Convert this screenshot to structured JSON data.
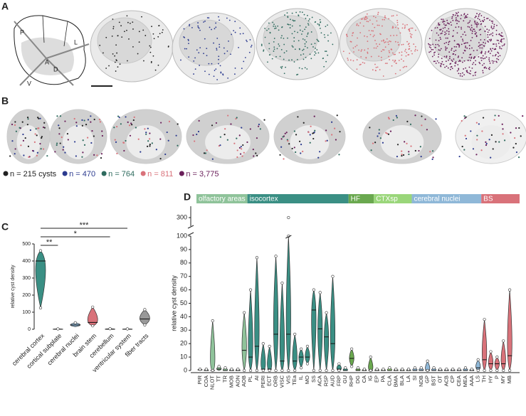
{
  "panel_labels": [
    "A",
    "B",
    "C",
    "D"
  ],
  "panel_a": {
    "axes": [
      "P",
      "L",
      "A",
      "D",
      "V"
    ]
  },
  "panel_b": {
    "legend": [
      {
        "label": "n = 215 cysts",
        "color": "#222222"
      },
      {
        "label": "n = 470",
        "color": "#2b3a8f"
      },
      {
        "label": "n = 764",
        "color": "#2e6b5e"
      },
      {
        "label": "n = 811",
        "color": "#d9727a"
      },
      {
        "label": "n = 3,775",
        "color": "#6a1f5a"
      }
    ]
  },
  "chart_data": [
    {
      "type": "violin",
      "ylabel": "relative cyst density",
      "categories": [
        "cerebral cortex",
        "cortical subplate",
        "cerebral nuclei",
        "brain stem",
        "cerebellum",
        "ventricular system",
        "fiber tracts"
      ],
      "colors": [
        "#3a8f84",
        "#cccccc",
        "#8fb8d8",
        "#d9727a",
        "#cccccc",
        "#cccccc",
        "#999999"
      ],
      "min": [
        125,
        0,
        15,
        20,
        0,
        0,
        25
      ],
      "median": [
        400,
        0,
        25,
        40,
        0,
        0,
        60
      ],
      "max": [
        460,
        2,
        38,
        130,
        3,
        2,
        115
      ],
      "ylim": [
        0,
        500
      ],
      "yticks": [
        0,
        100,
        200,
        300,
        400,
        500
      ],
      "annotations": [
        {
          "text": "**",
          "from": "cerebral cortex",
          "to": "cortical subplate"
        },
        {
          "text": "*",
          "from": "cerebral cortex",
          "to": "cerebellum"
        },
        {
          "text": "***",
          "from": "cerebral cortex",
          "to": "ventricular system"
        }
      ]
    },
    {
      "type": "violin",
      "ylabel": "relative cyst density",
      "categories": [
        "PIR",
        "COA",
        "NLOT",
        "TT",
        "TR",
        "MOB",
        "AON",
        "AOB",
        "PL",
        "AI",
        "PERI",
        "ECT",
        "ORB",
        "VISC",
        "VIS",
        "TEa",
        "IL",
        "MO",
        "SS",
        "ACA",
        "RSP",
        "AUD",
        "FRP",
        "GU",
        "RHP",
        "DG",
        "CA",
        "IG",
        "EP",
        "PA",
        "CLA",
        "BMA",
        "BLA",
        "LA",
        "SI",
        "NDB",
        "GP",
        "BST",
        "OT",
        "ACB",
        "CP",
        "CEA",
        "MEA",
        "AAA",
        "LS",
        "TH",
        "HY",
        "P",
        "MY",
        "MB"
      ],
      "min": [
        0,
        0,
        0,
        0,
        0,
        0,
        0,
        0,
        0,
        0,
        0,
        0,
        0,
        0,
        0,
        0,
        2,
        5,
        0,
        0,
        0,
        0,
        0,
        0,
        3,
        0,
        0,
        0,
        0,
        0,
        0,
        0,
        0,
        0,
        0,
        0,
        0,
        0,
        0,
        0,
        0,
        0,
        0,
        0,
        0,
        0,
        0,
        0,
        0,
        0
      ],
      "median": [
        0.5,
        0,
        0,
        1,
        0,
        0,
        0,
        15,
        10,
        18,
        1,
        1,
        27,
        7,
        27,
        7,
        10,
        10,
        45,
        31,
        25,
        20,
        1,
        0,
        9,
        0,
        0,
        0,
        0,
        0,
        0,
        0,
        0,
        0,
        0,
        0,
        0,
        0,
        0,
        0,
        0,
        0,
        0,
        0,
        2,
        8,
        5,
        5,
        5,
        11
      ],
      "max": [
        1,
        1,
        37,
        3,
        2,
        1,
        1,
        43,
        60,
        84,
        20,
        18,
        85,
        65,
        100,
        27,
        16,
        18,
        60,
        58,
        43,
        70,
        5,
        2,
        16,
        2,
        1,
        10,
        1,
        1,
        2,
        1,
        1,
        1,
        2,
        2,
        7,
        2,
        1,
        1,
        1,
        1,
        2,
        1,
        8,
        38,
        14,
        10,
        22,
        60
      ],
      "group_colors": [
        "#8fc39a",
        "#3a8f84",
        "#6aa84f",
        "#9ad67a",
        "#8fb8d8",
        "#d9727a"
      ],
      "groups": [
        {
          "name": "olfactory areas",
          "from": "PIR",
          "to": "AOB"
        },
        {
          "name": "isocortex",
          "from": "PL",
          "to": "GU"
        },
        {
          "name": "HF",
          "from": "RHP",
          "to": "IG"
        },
        {
          "name": "CTXsp",
          "from": "EP",
          "to": "LA"
        },
        {
          "name": "cerebral nuclei",
          "from": "SI",
          "to": "LS"
        },
        {
          "name": "BS",
          "from": "TH",
          "to": "MB"
        }
      ],
      "outliers": [
        {
          "category": "VIS",
          "value": 300
        }
      ],
      "ylim": [
        0,
        100
      ],
      "yticks": [
        0,
        10,
        20,
        30,
        40,
        50,
        60,
        70,
        80,
        90,
        100
      ],
      "upper_ylim": [
        285,
        320
      ],
      "upper_yticks": [
        300
      ]
    }
  ]
}
